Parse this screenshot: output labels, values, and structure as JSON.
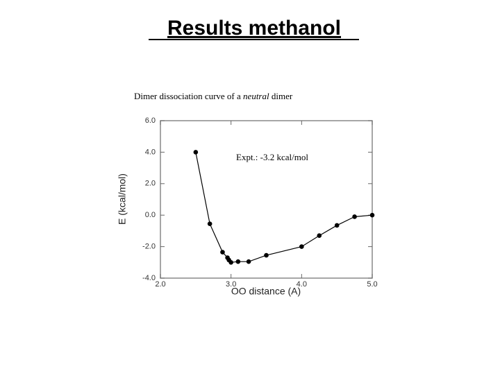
{
  "header": {
    "title": "Results methanol"
  },
  "chart_data": {
    "type": "line",
    "subtitle": [
      "Dimer dissociation curve of a",
      "neutral",
      "dimer"
    ],
    "annotation": "Expt.:  -3.2 kcal/mol",
    "x_label": "OO distance (A)",
    "y_label": "E (kcal/mol)",
    "x": [
      2.5,
      2.7,
      2.88,
      2.95,
      2.97,
      3.0,
      3.1,
      3.25,
      3.5,
      4.0,
      4.25,
      4.5,
      4.75,
      5.0
    ],
    "values": [
      4.0,
      -0.55,
      -2.35,
      -2.7,
      -2.85,
      -3.0,
      -2.95,
      -2.95,
      -2.55,
      -2.0,
      -1.3,
      -0.65,
      -0.1,
      0.0
    ],
    "color": "#000000",
    "xlim": [
      2.0,
      5.0
    ],
    "xticks": [
      {
        "value": 2,
        "label": "2.0"
      },
      {
        "value": 3,
        "label": "3.0"
      },
      {
        "value": 4,
        "label": "4.0"
      },
      {
        "value": 5,
        "label": "5.0"
      }
    ],
    "ylim": [
      -4.0,
      6.0
    ],
    "yticks": [
      {
        "value": 6,
        "label": "6.0"
      },
      {
        "value": 4,
        "label": "4.0"
      },
      {
        "value": 2,
        "label": "2.0"
      },
      {
        "value": 0,
        "label": "0.0"
      },
      {
        "value": -2,
        "label": "-2.0"
      },
      {
        "value": -4,
        "label": "-4.0"
      }
    ]
  }
}
